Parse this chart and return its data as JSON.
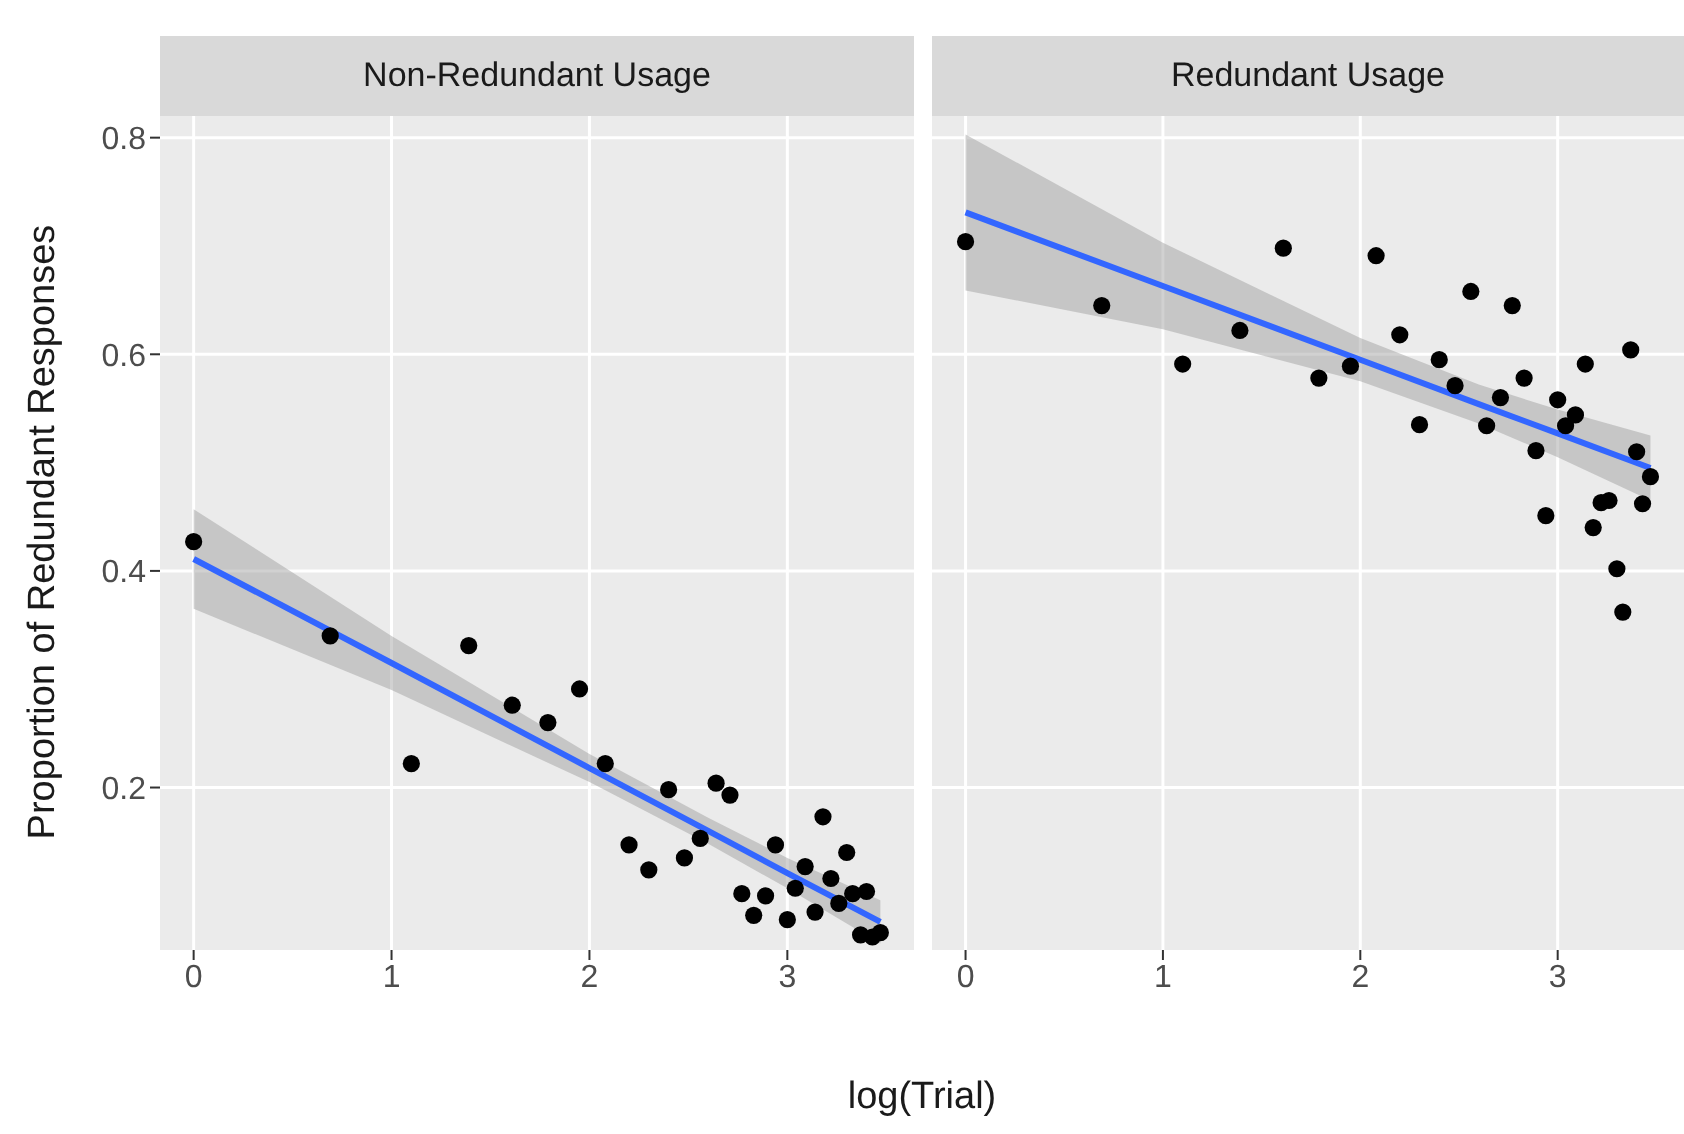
{
  "chart_data": [
    {
      "type": "scatter",
      "title": "Non-Redundant Usage",
      "xlabel": "log(Trial)",
      "ylabel": "Proportion of Redundant Responses",
      "xlim": [
        -0.17,
        3.64
      ],
      "xticks": [
        0,
        1,
        2,
        3
      ],
      "ylim": [
        0.05,
        0.82
      ],
      "yticks": [
        0.2,
        0.4,
        0.6,
        0.8
      ],
      "grid": true,
      "series": [
        {
          "marker": "circle",
          "color": "#000000",
          "x": [
            0,
            0.69,
            1.1,
            1.39,
            1.61,
            1.79,
            1.95,
            2.08,
            2.2,
            2.3,
            2.4,
            2.48,
            2.56,
            2.64,
            2.71,
            2.77,
            2.83,
            2.89,
            2.94,
            3.0,
            3.04,
            3.09,
            3.14,
            3.18,
            3.22,
            3.26,
            3.3,
            3.33,
            3.37,
            3.4,
            3.43,
            3.47
          ],
          "values": [
            0.427,
            0.34,
            0.222,
            0.331,
            0.276,
            0.26,
            0.291,
            0.222,
            0.147,
            0.124,
            0.198,
            0.135,
            0.153,
            0.204,
            0.193,
            0.102,
            0.082,
            0.1,
            0.147,
            0.078,
            0.107,
            0.127,
            0.085,
            0.173,
            0.116,
            0.093,
            0.14,
            0.102,
            0.064,
            0.104,
            0.062,
            0.066
          ]
        },
        {
          "type": "line",
          "marker": "none",
          "color": "#3366ff",
          "x": [
            0,
            1,
            2,
            2.6,
            3,
            3.47
          ],
          "values": [
            0.411,
            0.315,
            0.218,
            0.16,
            0.121,
            0.076
          ],
          "lower": [
            0.365,
            0.29,
            0.205,
            0.148,
            0.107,
            0.056
          ],
          "upper": [
            0.457,
            0.34,
            0.231,
            0.172,
            0.135,
            0.096
          ]
        }
      ]
    },
    {
      "type": "scatter",
      "title": "Redundant Usage",
      "xlim": [
        -0.17,
        3.64
      ],
      "xticks": [
        0,
        1,
        2,
        3
      ],
      "ylim": [
        0.05,
        0.82
      ],
      "yticks": [
        0.2,
        0.4,
        0.6,
        0.8
      ],
      "grid": true,
      "tick_labels": "x",
      "series": [
        {
          "marker": "circle",
          "color": "#000000",
          "x": [
            0,
            0.69,
            1.1,
            1.39,
            1.61,
            1.79,
            1.95,
            2.08,
            2.2,
            2.3,
            2.4,
            2.48,
            2.56,
            2.64,
            2.71,
            2.77,
            2.83,
            2.89,
            2.94,
            3.0,
            3.04,
            3.09,
            3.14,
            3.18,
            3.22,
            3.26,
            3.3,
            3.33,
            3.37,
            3.4,
            3.43,
            3.47
          ],
          "values": [
            0.704,
            0.645,
            0.591,
            0.622,
            0.698,
            0.578,
            0.589,
            0.691,
            0.618,
            0.535,
            0.595,
            0.571,
            0.658,
            0.534,
            0.56,
            0.645,
            0.578,
            0.511,
            0.451,
            0.558,
            0.534,
            0.544,
            0.591,
            0.44,
            0.463,
            0.465,
            0.402,
            0.362,
            0.604,
            0.51,
            0.462,
            0.487
          ]
        },
        {
          "type": "line",
          "marker": "none",
          "color": "#3366ff",
          "x": [
            0,
            1,
            2,
            2.6,
            3,
            3.47
          ],
          "values": [
            0.731,
            0.663,
            0.595,
            0.554,
            0.527,
            0.495
          ],
          "lower": [
            0.659,
            0.623,
            0.575,
            0.536,
            0.505,
            0.465
          ],
          "upper": [
            0.803,
            0.703,
            0.615,
            0.572,
            0.549,
            0.525
          ]
        }
      ]
    }
  ]
}
